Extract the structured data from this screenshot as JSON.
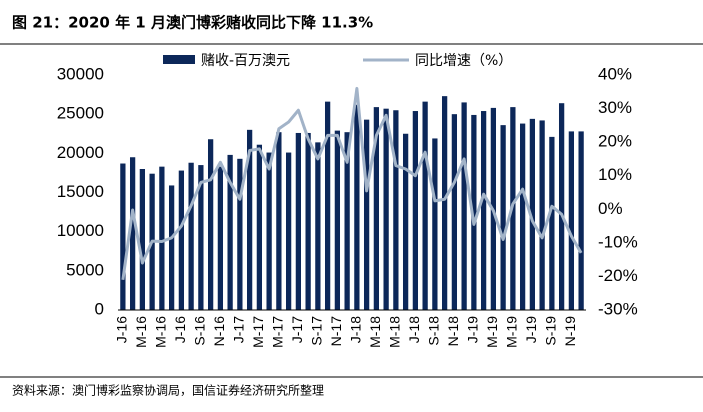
{
  "title": "图 21：2020 年 1 月澳门博彩赌收同比下降 11.3%",
  "source": "资料来源：澳门博彩监察协调局，国信证券经济研究所整理",
  "chart_data": {
    "type": "bar",
    "categories": [
      "J-16",
      null,
      "M-16",
      null,
      "M-16",
      null,
      "J-16",
      null,
      "S-16",
      null,
      "N-16",
      null,
      "J-17",
      null,
      "M-17",
      null,
      "M-17",
      null,
      "J-17",
      null,
      "S-17",
      null,
      "N-17",
      null,
      "J-18",
      null,
      "M-18",
      null,
      "M-18",
      null,
      "J-18",
      null,
      "S-18",
      null,
      "N-18",
      null,
      "J-19",
      null,
      "M-19",
      null,
      "M-19",
      null,
      "J-19",
      null,
      "S-19",
      null,
      "N-19",
      null
    ],
    "series": [
      {
        "name": "赌收-百万澳元",
        "type": "bar",
        "color": "#0c2759",
        "values": [
          18700,
          19500,
          18000,
          17400,
          18300,
          15900,
          17800,
          18800,
          18500,
          21800,
          18300,
          19800,
          19300,
          23000,
          21100,
          20100,
          22700,
          20100,
          22600,
          22600,
          21400,
          26600,
          22900,
          22700,
          26200,
          24300,
          25900,
          25700,
          25500,
          22500,
          25400,
          26600,
          21900,
          27300,
          25000,
          26500,
          24900,
          25400,
          25800,
          23600,
          25900,
          23800,
          24400,
          24200,
          22100,
          26400,
          22800,
          22800
        ]
      },
      {
        "name": "同比增速（%）",
        "type": "line",
        "axis": "y2",
        "color": "#a2b3c8",
        "values": [
          -21,
          -0.2,
          -16,
          -9.5,
          -9.6,
          -8.5,
          -5,
          1.1,
          8,
          8.8,
          14,
          8,
          3,
          17.5,
          18,
          12,
          24,
          26,
          29.5,
          21,
          15,
          22,
          22,
          14,
          36,
          5.5,
          22,
          28,
          13,
          12,
          10,
          17,
          2.5,
          3,
          8,
          15,
          -4.5,
          4.5,
          -0.4,
          -9,
          1.6,
          6,
          -3.5,
          -8.5,
          0.9,
          -1.5,
          -8,
          -13
        ]
      }
    ],
    "ylim": [
      0,
      30000
    ],
    "yticks": [
      0,
      5000,
      10000,
      15000,
      20000,
      25000,
      30000
    ],
    "y2lim": [
      -30,
      40
    ],
    "y2ticks": [
      {
        "value": -30,
        "label": "-30%"
      },
      {
        "value": -20,
        "label": "-20%"
      },
      {
        "value": -10,
        "label": "-10%"
      },
      {
        "value": 0,
        "label": "0%"
      },
      {
        "value": 10,
        "label": "10%"
      },
      {
        "value": 20,
        "label": "20%"
      },
      {
        "value": 30,
        "label": "30%"
      },
      {
        "value": 40,
        "label": "40%"
      }
    ],
    "legend": "top"
  }
}
